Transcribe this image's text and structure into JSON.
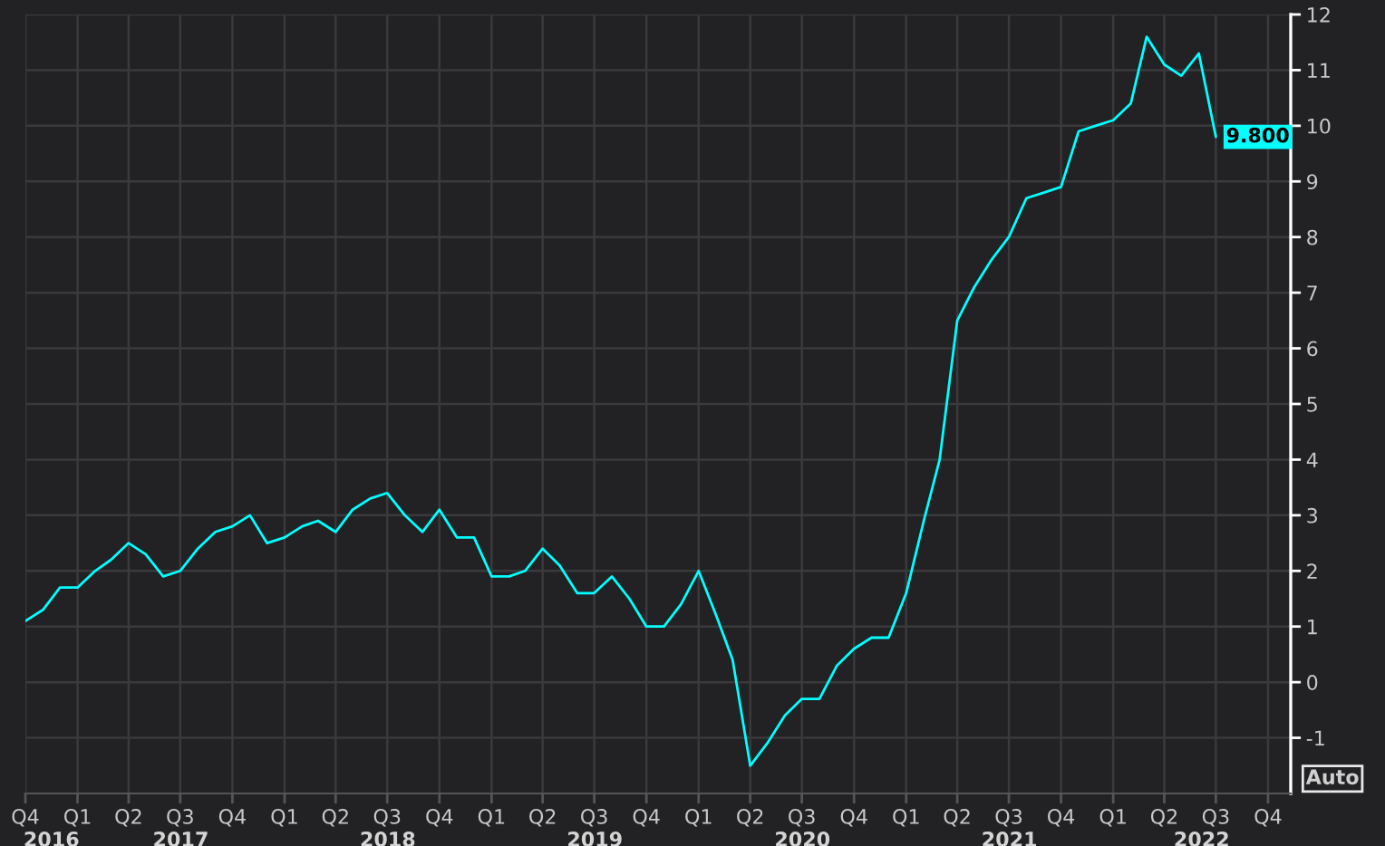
{
  "chart_data": {
    "type": "line",
    "x": [
      "2016-10",
      "2016-11",
      "2016-12",
      "2017-01",
      "2017-02",
      "2017-03",
      "2017-04",
      "2017-05",
      "2017-06",
      "2017-07",
      "2017-08",
      "2017-09",
      "2017-10",
      "2017-11",
      "2017-12",
      "2018-01",
      "2018-02",
      "2018-03",
      "2018-04",
      "2018-05",
      "2018-06",
      "2018-07",
      "2018-08",
      "2018-09",
      "2018-10",
      "2018-11",
      "2018-12",
      "2019-01",
      "2019-02",
      "2019-03",
      "2019-04",
      "2019-05",
      "2019-06",
      "2019-07",
      "2019-08",
      "2019-09",
      "2019-10",
      "2019-11",
      "2019-12",
      "2020-01",
      "2020-02",
      "2020-03",
      "2020-04",
      "2020-05",
      "2020-06",
      "2020-07",
      "2020-08",
      "2020-09",
      "2020-10",
      "2020-11",
      "2020-12",
      "2021-01",
      "2021-02",
      "2021-03",
      "2021-04",
      "2021-05",
      "2021-06",
      "2021-07",
      "2021-08",
      "2021-09",
      "2021-10",
      "2021-11",
      "2021-12",
      "2022-01",
      "2022-02",
      "2022-03",
      "2022-04",
      "2022-05",
      "2022-06",
      "2022-07"
    ],
    "series": [
      {
        "color": "#00ffff",
        "values": [
          1.1,
          1.3,
          1.7,
          1.7,
          2.0,
          2.2,
          2.5,
          2.3,
          1.9,
          2.0,
          2.4,
          2.7,
          2.8,
          3.0,
          2.5,
          2.6,
          2.8,
          2.9,
          2.7,
          3.1,
          3.3,
          3.4,
          3.0,
          2.7,
          3.1,
          2.6,
          2.6,
          1.9,
          1.9,
          2.0,
          2.4,
          2.1,
          1.6,
          1.6,
          1.9,
          1.5,
          1.0,
          1.0,
          1.4,
          2.0,
          1.2,
          0.4,
          -1.5,
          -1.1,
          -0.6,
          -0.3,
          -0.3,
          0.3,
          0.6,
          0.8,
          0.8,
          1.6,
          2.9,
          4.0,
          6.5,
          7.1,
          7.6,
          8.0,
          8.7,
          8.8,
          8.9,
          9.9,
          10.0,
          10.1,
          10.4,
          11.6,
          11.1,
          10.9,
          11.3,
          9.8
        ],
        "value_labels": [
          null,
          null,
          null,
          null,
          null,
          null,
          null,
          null,
          null,
          null,
          null,
          null,
          null,
          null,
          null,
          null,
          null,
          null,
          null,
          null,
          null,
          null,
          null,
          null,
          null,
          null,
          null,
          null,
          null,
          null,
          null,
          null,
          null,
          null,
          null,
          null,
          null,
          null,
          null,
          null,
          null,
          null,
          null,
          null,
          null,
          null,
          null,
          null,
          null,
          null,
          null,
          null,
          null,
          null,
          null,
          null,
          null,
          null,
          null,
          null,
          null,
          null,
          null,
          null,
          null,
          null,
          null,
          null,
          null,
          "9.800"
        ]
      }
    ],
    "xlim": [
      "2016-10-01",
      "2022-11-10"
    ],
    "xticks": [
      {
        "value": "2016-10-01",
        "label": "Q4"
      },
      {
        "value": "2017-01-01",
        "label": "Q1"
      },
      {
        "value": "2017-04-01",
        "label": "Q2"
      },
      {
        "value": "2017-07-01",
        "label": "Q3"
      },
      {
        "value": "2017-10-01",
        "label": "Q4"
      },
      {
        "value": "2018-01-01",
        "label": "Q1"
      },
      {
        "value": "2018-04-01",
        "label": "Q2"
      },
      {
        "value": "2018-07-01",
        "label": "Q3"
      },
      {
        "value": "2018-10-01",
        "label": "Q4"
      },
      {
        "value": "2019-01-01",
        "label": "Q1"
      },
      {
        "value": "2019-04-01",
        "label": "Q2"
      },
      {
        "value": "2019-07-01",
        "label": "Q3"
      },
      {
        "value": "2019-10-01",
        "label": "Q4"
      },
      {
        "value": "2020-01-01",
        "label": "Q1"
      },
      {
        "value": "2020-04-01",
        "label": "Q2"
      },
      {
        "value": "2020-07-01",
        "label": "Q3"
      },
      {
        "value": "2020-10-01",
        "label": "Q4"
      },
      {
        "value": "2021-01-01",
        "label": "Q1"
      },
      {
        "value": "2021-04-01",
        "label": "Q2"
      },
      {
        "value": "2021-07-01",
        "label": "Q3"
      },
      {
        "value": "2021-10-01",
        "label": "Q4"
      },
      {
        "value": "2022-01-01",
        "label": "Q1"
      },
      {
        "value": "2022-04-01",
        "label": "Q2"
      },
      {
        "value": "2022-07-01",
        "label": "Q3"
      },
      {
        "value": "2022-10-01",
        "label": "Q4"
      }
    ],
    "x2lim": [
      "2016-10-01",
      "2022-11-10"
    ],
    "x2ticks": [
      {
        "value": "2016-11-16",
        "label": "2016"
      },
      {
        "value": "2017-07-02",
        "label": "2017"
      },
      {
        "value": "2018-07-02",
        "label": "2018"
      },
      {
        "value": "2019-07-02",
        "label": "2019"
      },
      {
        "value": "2020-07-02",
        "label": "2020"
      },
      {
        "value": "2021-07-02",
        "label": "2021"
      },
      {
        "value": "2022-06-06",
        "label": "2022"
      }
    ],
    "ylim": [
      -2,
      12
    ],
    "yticks": [
      -1,
      0,
      1,
      2,
      3,
      4,
      5,
      6,
      7,
      8,
      9,
      10,
      11,
      12
    ],
    "grid": true,
    "annotations": [
      "Auto"
    ]
  }
}
